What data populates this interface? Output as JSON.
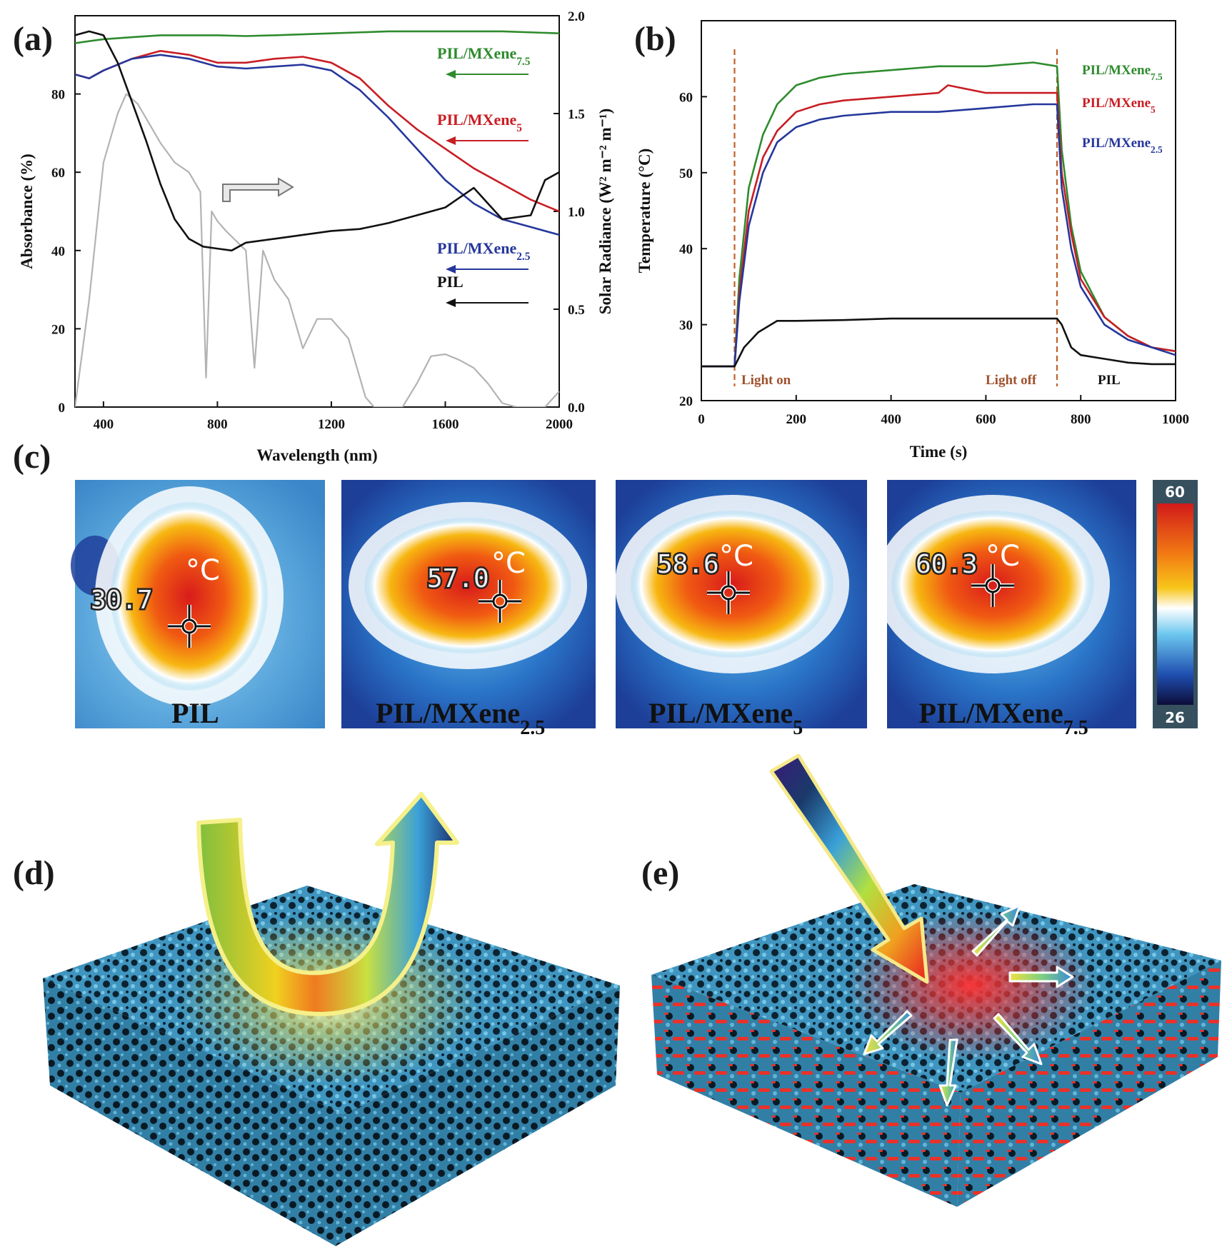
{
  "labels": {
    "a": "(a)",
    "b": "(b)",
    "c": "(c)",
    "d": "(d)",
    "e": "(e)"
  },
  "chart_data": [
    {
      "id": "a",
      "type": "line",
      "xlabel": "Wavelength (nm)",
      "ylabel": "Absorbance (%)",
      "y2label": "Solar Radiance (W² m⁻² m⁻¹)",
      "xlim": [
        300,
        2000
      ],
      "ylim": [
        0,
        100
      ],
      "y2lim": [
        0,
        2.0
      ],
      "xticks": [
        "400",
        "800",
        "1200",
        "1600",
        "2000"
      ],
      "yticks": [
        "0",
        "20",
        "40",
        "60",
        "80"
      ],
      "y2ticks": [
        "0.0",
        "0.5",
        "1.0",
        "1.5",
        "2.0"
      ],
      "series": [
        {
          "name": "PIL/MXene",
          "sub": "7.5",
          "color": "#2e8b2e",
          "axis": "left",
          "x": [
            300,
            400,
            500,
            600,
            700,
            800,
            900,
            1000,
            1200,
            1400,
            1600,
            1800,
            2000
          ],
          "y": [
            93,
            94,
            94.5,
            95,
            95,
            95,
            94.8,
            95,
            95.5,
            96,
            96,
            96,
            95.5
          ]
        },
        {
          "name": "PIL/MXene",
          "sub": "5",
          "color": "#c81e24",
          "axis": "left",
          "x": [
            300,
            350,
            400,
            500,
            600,
            700,
            800,
            900,
            1000,
            1100,
            1200,
            1300,
            1400,
            1500,
            1600,
            1700,
            1800,
            1900,
            2000
          ],
          "y": [
            85,
            84,
            86,
            89,
            91,
            90,
            88,
            88,
            89,
            89.5,
            88,
            84,
            77,
            71,
            66,
            61,
            57,
            53,
            50
          ]
        },
        {
          "name": "PIL/MXene",
          "sub": "2.5",
          "color": "#25379b",
          "axis": "left",
          "x": [
            300,
            350,
            400,
            500,
            600,
            700,
            800,
            900,
            1000,
            1100,
            1200,
            1300,
            1400,
            1500,
            1600,
            1700,
            1800,
            1900,
            2000
          ],
          "y": [
            85,
            84,
            86,
            89,
            90,
            89,
            87,
            86.5,
            87,
            87.5,
            86,
            81,
            74,
            66,
            58,
            52,
            48,
            46,
            44
          ]
        },
        {
          "name": "PIL",
          "sub": "",
          "color": "#111111",
          "axis": "left",
          "x": [
            300,
            350,
            400,
            450,
            500,
            550,
            600,
            650,
            700,
            750,
            800,
            850,
            900,
            1000,
            1100,
            1200,
            1300,
            1400,
            1500,
            1600,
            1700,
            1800,
            1900,
            1950,
            2000
          ],
          "y": [
            95,
            96,
            95,
            88,
            78,
            68,
            57,
            48,
            43,
            41,
            40.5,
            40,
            42,
            43,
            44,
            45,
            45.5,
            47,
            49,
            51,
            56,
            48,
            49,
            58,
            60
          ]
        },
        {
          "name": "Solar",
          "sub": "",
          "color": "#b3b3b3",
          "axis": "right",
          "x": [
            300,
            350,
            400,
            450,
            480,
            520,
            560,
            600,
            650,
            700,
            740,
            760,
            780,
            800,
            830,
            900,
            930,
            960,
            1000,
            1050,
            1100,
            1150,
            1200,
            1260,
            1320,
            1350,
            1400,
            1450,
            1500,
            1550,
            1600,
            1650,
            1700,
            1750,
            1800,
            1850,
            1900,
            1950,
            2000
          ],
          "y": [
            0.0,
            0.55,
            1.25,
            1.5,
            1.6,
            1.55,
            1.45,
            1.35,
            1.25,
            1.2,
            1.1,
            0.15,
            1.0,
            0.95,
            0.9,
            0.8,
            0.2,
            0.8,
            0.65,
            0.55,
            0.3,
            0.45,
            0.45,
            0.35,
            0.05,
            0.0,
            0.0,
            0.0,
            0.12,
            0.26,
            0.27,
            0.24,
            0.2,
            0.12,
            0.02,
            0.0,
            0.0,
            0.0,
            0.08
          ]
        }
      ],
      "legend_text": [
        "PIL/MXene",
        "PIL/MXene",
        "PIL/MXene",
        "PIL"
      ],
      "legend_subs": [
        "7.5",
        "5",
        "2.5",
        ""
      ]
    },
    {
      "id": "b",
      "type": "line",
      "xlabel": "Time (s)",
      "ylabel": "Temperature (°C)",
      "xlim": [
        0,
        1000
      ],
      "ylim": [
        20,
        70
      ],
      "xticks": [
        "0",
        "200",
        "400",
        "600",
        "800",
        "1000"
      ],
      "yticks": [
        "20",
        "30",
        "40",
        "50",
        "60"
      ],
      "annotations": [
        "Light on",
        "Light off"
      ],
      "light_on_x": 70,
      "light_off_x": 750,
      "series": [
        {
          "name": "PIL/MXene",
          "sub": "7.5",
          "color": "#2e8b2e",
          "x": [
            0,
            70,
            80,
            100,
            130,
            160,
            200,
            250,
            300,
            400,
            500,
            600,
            700,
            750,
            760,
            780,
            800,
            850,
            900,
            950,
            1000
          ],
          "y": [
            24.5,
            24.5,
            36,
            48,
            55,
            59,
            61.5,
            62.5,
            63,
            63.5,
            64,
            64,
            64.5,
            64,
            53,
            43,
            37,
            31,
            28.5,
            27,
            26.5
          ]
        },
        {
          "name": "PIL/MXene",
          "sub": "5",
          "color": "#c81e24",
          "x": [
            0,
            70,
            80,
            100,
            130,
            160,
            200,
            250,
            300,
            400,
            500,
            520,
            600,
            700,
            750,
            760,
            780,
            800,
            850,
            900,
            950,
            1000
          ],
          "y": [
            24.5,
            24.5,
            34,
            45,
            52,
            55.5,
            58,
            59,
            59.5,
            60,
            60.5,
            61.5,
            60.5,
            60.5,
            60.5,
            50,
            42,
            36,
            31,
            28.5,
            27,
            26.5
          ]
        },
        {
          "name": "PIL/MXene",
          "sub": "2.5",
          "color": "#25379b",
          "x": [
            0,
            70,
            80,
            100,
            130,
            160,
            200,
            250,
            300,
            400,
            500,
            600,
            700,
            750,
            760,
            780,
            800,
            850,
            900,
            950,
            1000
          ],
          "y": [
            24.5,
            24.5,
            33,
            43,
            50,
            54,
            56,
            57,
            57.5,
            58,
            58,
            58.5,
            59,
            59,
            48,
            40,
            35,
            30,
            28,
            27,
            26
          ]
        },
        {
          "name": "PIL",
          "sub": "",
          "color": "#111111",
          "x": [
            0,
            70,
            90,
            120,
            160,
            200,
            300,
            400,
            500,
            600,
            700,
            750,
            760,
            780,
            800,
            850,
            900,
            950,
            1000
          ],
          "y": [
            24.5,
            24.5,
            27,
            29,
            30.5,
            30.5,
            30.6,
            30.8,
            30.8,
            30.8,
            30.8,
            30.8,
            30,
            27,
            26,
            25.5,
            25,
            24.8,
            24.8
          ]
        }
      ],
      "legend_text": [
        "PIL/MXene",
        "PIL/MXene",
        "PIL/MXene",
        "PIL"
      ],
      "legend_subs": [
        "7.5",
        "5",
        "2.5",
        ""
      ]
    }
  ],
  "ir_images": [
    {
      "name": "PIL",
      "sub": "",
      "temp": "30.7",
      "unit": "°C"
    },
    {
      "name": "PIL/MXene",
      "sub": "2.5",
      "temp": "57.0",
      "unit": "°C"
    },
    {
      "name": "PIL/MXene",
      "sub": "5",
      "temp": "58.6",
      "unit": "°C"
    },
    {
      "name": "PIL/MXene",
      "sub": "7.5",
      "temp": "60.3",
      "unit": "°C"
    }
  ],
  "colorbar": {
    "max": "60",
    "min": "26"
  },
  "colors": {
    "ir_bg": "#1f5fb4",
    "pore": "#4aa8cf",
    "heat": "#e8322a"
  }
}
